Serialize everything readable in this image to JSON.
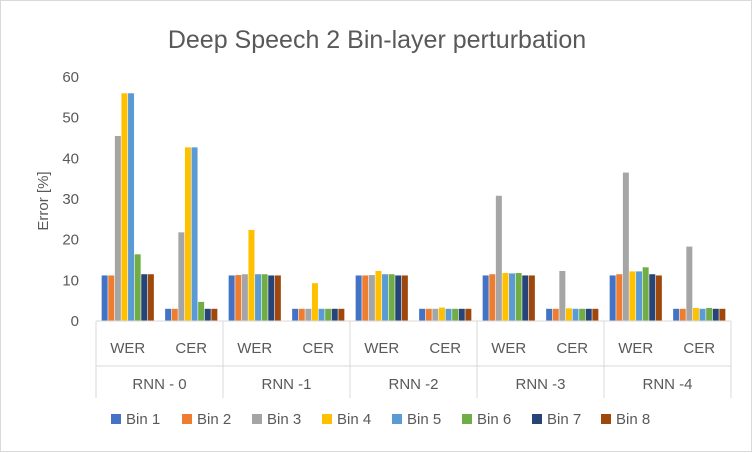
{
  "chart_data": {
    "type": "bar",
    "title": "Deep Speech 2 Bin-layer perturbation",
    "xlabel": "",
    "ylabel": "Error [%]",
    "ylim": [
      0,
      60
    ],
    "yticks": [
      0,
      10,
      20,
      30,
      40,
      50,
      60
    ],
    "grid": false,
    "legend_position": "bottom",
    "groups": [
      "RNN - 0",
      "RNN -1",
      "RNN -2",
      "RNN -3",
      "RNN -4"
    ],
    "categories": [
      "WER",
      "CER",
      "WER",
      "CER",
      "WER",
      "CER",
      "WER",
      "CER",
      "WER",
      "CER"
    ],
    "series": [
      {
        "name": "Bin 1",
        "color": "#4472C4",
        "values": [
          11.2,
          3.0,
          11.2,
          3.0,
          11.2,
          3.0,
          11.2,
          3.0,
          11.2,
          3.0
        ]
      },
      {
        "name": "Bin 2",
        "color": "#ED7D31",
        "values": [
          11.2,
          3.0,
          11.3,
          3.0,
          11.2,
          3.0,
          11.5,
          3.0,
          11.5,
          3.0
        ]
      },
      {
        "name": "Bin 3",
        "color": "#A5A5A5",
        "values": [
          45.5,
          21.8,
          11.5,
          3.0,
          11.3,
          3.0,
          30.8,
          12.3,
          36.5,
          18.3
        ]
      },
      {
        "name": "Bin 4",
        "color": "#FFC000",
        "values": [
          56.0,
          42.7,
          22.4,
          9.3,
          12.3,
          3.3,
          11.8,
          3.1,
          12.2,
          3.2
        ]
      },
      {
        "name": "Bin 5",
        "color": "#5B9BD5",
        "values": [
          56.0,
          42.7,
          11.5,
          3.0,
          11.5,
          3.0,
          11.7,
          3.0,
          12.2,
          3.0
        ]
      },
      {
        "name": "Bin 6",
        "color": "#70AD47",
        "values": [
          16.4,
          4.7,
          11.5,
          3.0,
          11.5,
          3.0,
          11.8,
          3.0,
          13.2,
          3.2
        ]
      },
      {
        "name": "Bin 7",
        "color": "#264478",
        "values": [
          11.5,
          3.0,
          11.2,
          3.0,
          11.2,
          3.0,
          11.2,
          3.0,
          11.5,
          3.0
        ]
      },
      {
        "name": "Bin 8",
        "color": "#9E480E",
        "values": [
          11.5,
          3.0,
          11.2,
          3.0,
          11.2,
          3.0,
          11.2,
          3.0,
          11.2,
          3.0
        ]
      }
    ]
  }
}
